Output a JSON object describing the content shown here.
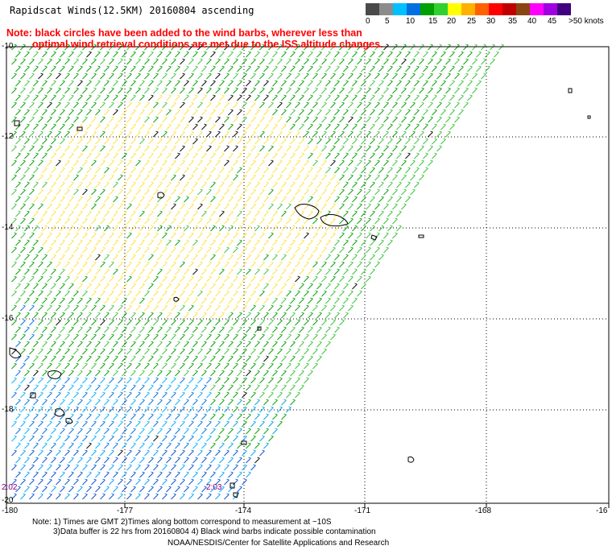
{
  "header": {
    "title": "Rapidscat Winds(12.5KM) 20160804 ascending",
    "note_line1": "Note: black circles have been added to the wind barbs, wherever less than",
    "note_line2": "optimal wind retrieval conditions are met due to the ISS altitude changes."
  },
  "legend": {
    "labels": [
      "0",
      "5",
      "10",
      "15",
      "20",
      "25",
      "30",
      "35",
      "40",
      "45",
      ">50 knots"
    ],
    "colors": [
      "#4a4a4a",
      "#8c8c8c",
      "#00c0ff",
      "#0070e0",
      "#00a000",
      "#30d030",
      "#ffff00",
      "#ffb000",
      "#ff6000",
      "#ff0000",
      "#c00000",
      "#8b4513",
      "#ff00ff",
      "#a000e0",
      "#400080"
    ]
  },
  "axes": {
    "lat_labels": [
      "-10",
      "-12",
      "-14",
      "-16",
      "-18",
      "-20"
    ],
    "lon_labels": [
      "-180",
      "-177",
      "-174",
      "-171",
      "-168",
      "-16"
    ]
  },
  "times": [
    "2:02",
    "2:03"
  ],
  "footer": {
    "line1": "Note: 1) Times are GMT 2)Times along bottom correspond to measurement at ~10S",
    "line2": "3)Data buffer is 22 hrs from 20160804 4) Black wind barbs indicate possible contamination",
    "line3": "NOAA/NESDIS/Center for Satellite Applications and Research"
  }
}
